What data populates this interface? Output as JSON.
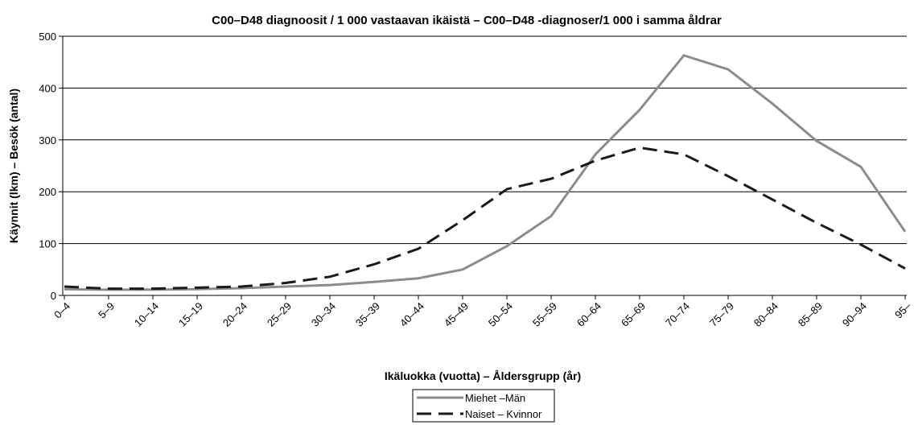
{
  "chart_data": {
    "type": "line",
    "title": "C00–D48 diagnoosit / 1 000 vastaavan ikäistä – C00–D48 -diagnoser/1 000 i samma åldrar",
    "x_label": "Ikäluokka (vuotta) – Åldersgrupp (år)",
    "y_label": "Käynnit (lkm) – Besök (antal)",
    "categories": [
      "0–4",
      "5–9",
      "10–14",
      "15–19",
      "20–24",
      "25–29",
      "30–34",
      "35–39",
      "40–44",
      "45–49",
      "50–54",
      "55–59",
      "60–64",
      "65–69",
      "70–74",
      "75–79",
      "80–84",
      "85–89",
      "90–94",
      "95–"
    ],
    "series": [
      {
        "name": "Miehet –Män",
        "color": "#8c8c8c",
        "dash": "solid",
        "values": [
          12,
          11,
          11,
          12,
          14,
          17,
          20,
          26,
          33,
          50,
          95,
          153,
          272,
          358,
          463,
          436,
          370,
          298,
          248,
          123
        ]
      },
      {
        "name": "Naiset – Kvinnor",
        "color": "#1a1a1a",
        "dash": "dashed",
        "values": [
          17,
          13,
          13,
          15,
          17,
          24,
          36,
          60,
          90,
          145,
          205,
          225,
          260,
          285,
          272,
          230,
          185,
          140,
          98,
          52
        ]
      }
    ],
    "ylim": [
      0,
      500
    ],
    "yticks": [
      0,
      100,
      200,
      300,
      400,
      500
    ],
    "grid": true,
    "legend": "bottom"
  }
}
